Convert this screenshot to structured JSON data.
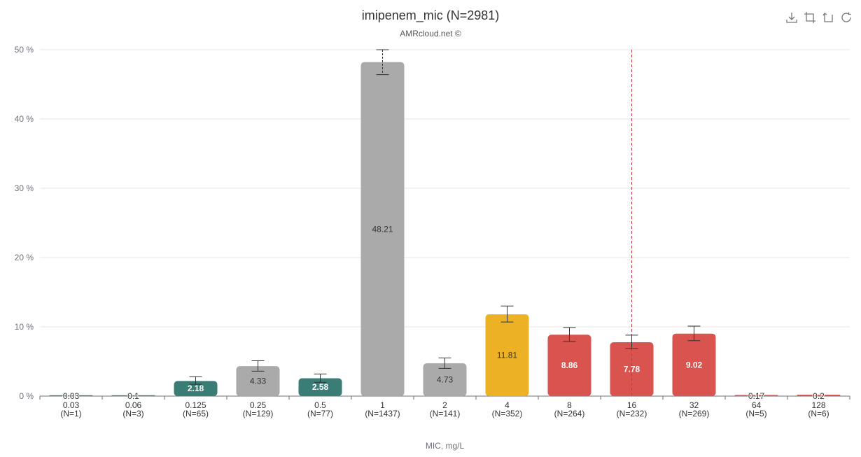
{
  "title": "imipenem_mic (N=2981)",
  "subtitle": "AMRcloud.net ©",
  "toolbar": {
    "icons": [
      "download-icon",
      "crop-icon",
      "crop-reset-icon",
      "refresh-icon"
    ]
  },
  "colors": {
    "susceptible": "#3a7c76",
    "neutral": "#aaaaaa",
    "intermediate": "#edb125",
    "resistant": "#d9534f",
    "grid": "#e6e6e6",
    "breakpoint_line": "#c23b3b"
  },
  "chart_data": {
    "type": "bar",
    "title": "imipenem_mic (N=2981)",
    "subtitle": "AMRcloud.net ©",
    "xlabel": "MIC, mg/L",
    "ylabel": "",
    "ylim": [
      0,
      50
    ],
    "y_ticks": [
      "0 %",
      "10 %",
      "20 %",
      "30 %",
      "40 %",
      "50 %"
    ],
    "y_tick_values": [
      0,
      10,
      20,
      30,
      40,
      50
    ],
    "grid": true,
    "categories": [
      "0.03",
      "0.06",
      "0.125",
      "0.25",
      "0.5",
      "1",
      "2",
      "4",
      "8",
      "16",
      "32",
      "64",
      "128"
    ],
    "counts": [
      "(N=1)",
      "(N=3)",
      "(N=65)",
      "(N=129)",
      "(N=77)",
      "(N=1437)",
      "(N=141)",
      "(N=352)",
      "(N=264)",
      "(N=232)",
      "(N=269)",
      "(N=5)",
      "(N=6)"
    ],
    "values": [
      0.03,
      0.1,
      2.18,
      4.33,
      2.58,
      48.21,
      4.73,
      11.81,
      8.86,
      7.78,
      9.02,
      0.17,
      0.2
    ],
    "value_labels": [
      "0.03",
      "0.1",
      "2.18",
      "4.33",
      "2.58",
      "48.21",
      "4.73",
      "11.81",
      "8.86",
      "7.78",
      "9.02",
      "0.17",
      "0.2"
    ],
    "error_low": [
      0.0,
      0.0,
      1.7,
      3.6,
      2.0,
      46.4,
      4.0,
      10.7,
      7.9,
      6.9,
      8.0,
      0.0,
      0.0
    ],
    "error_high": [
      0.0,
      0.0,
      2.8,
      5.1,
      3.2,
      50.0,
      5.5,
      13.0,
      9.9,
      8.8,
      10.1,
      0.0,
      0.0
    ],
    "bar_colors": [
      "#3a7c76",
      "#3a7c76",
      "#3a7c76",
      "#aaaaaa",
      "#3a7c76",
      "#aaaaaa",
      "#aaaaaa",
      "#edb125",
      "#d9534f",
      "#d9534f",
      "#d9534f",
      "#d9534f",
      "#d9534f"
    ],
    "label_colors": [
      "#333333",
      "#333333",
      "#ffffff",
      "#333333",
      "#ffffff",
      "#333333",
      "#333333",
      "#333333",
      "#ffffff",
      "#ffffff",
      "#ffffff",
      "#333333",
      "#333333"
    ],
    "breakpoint_category": "16"
  }
}
